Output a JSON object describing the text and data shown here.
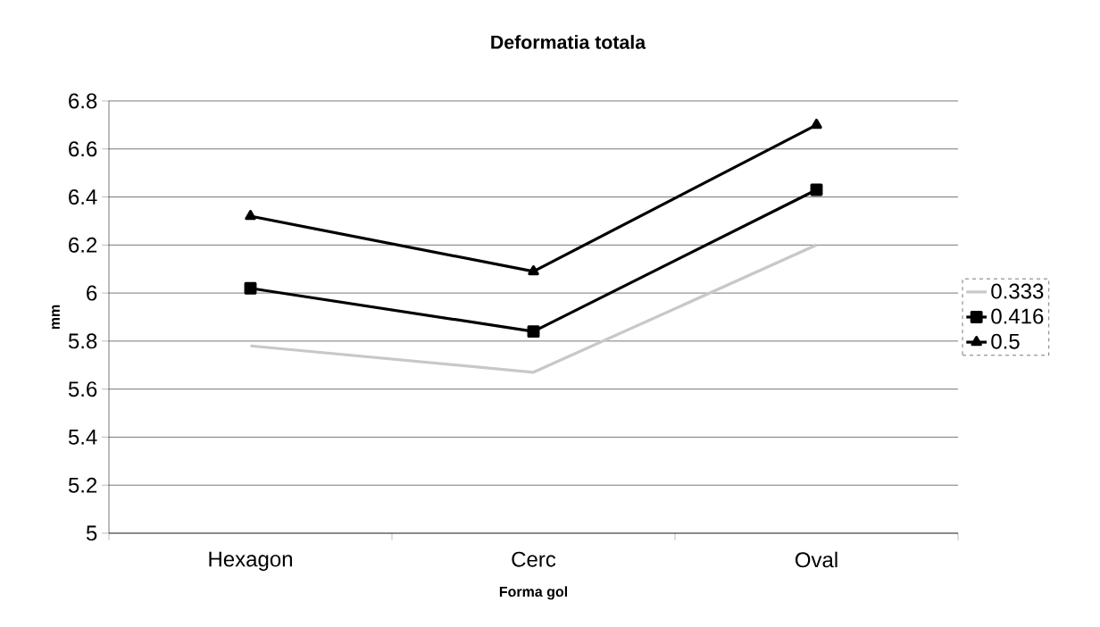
{
  "chart_data": {
    "type": "line",
    "title": "Deformatia totala",
    "xlabel": "Forma gol",
    "ylabel": "mm",
    "categories": [
      "Hexagon",
      "Cerc",
      "Oval"
    ],
    "series": [
      {
        "name": "0.333",
        "color": "#c8c8c8",
        "values": [
          5.78,
          5.67,
          6.2
        ],
        "marker": "none"
      },
      {
        "name": "0.416",
        "color": "#000000",
        "values": [
          6.02,
          5.84,
          6.43
        ],
        "marker": "square"
      },
      {
        "name": "0.5",
        "color": "#000000",
        "values": [
          6.32,
          6.09,
          6.7
        ],
        "marker": "triangle"
      }
    ],
    "ylim": [
      5,
      6.8
    ],
    "yticks": [
      5,
      5.2,
      5.4,
      5.6,
      5.8,
      6,
      6.2,
      6.4,
      6.6,
      6.8
    ],
    "grid": "y",
    "legend": "right",
    "line_style": "solid"
  }
}
